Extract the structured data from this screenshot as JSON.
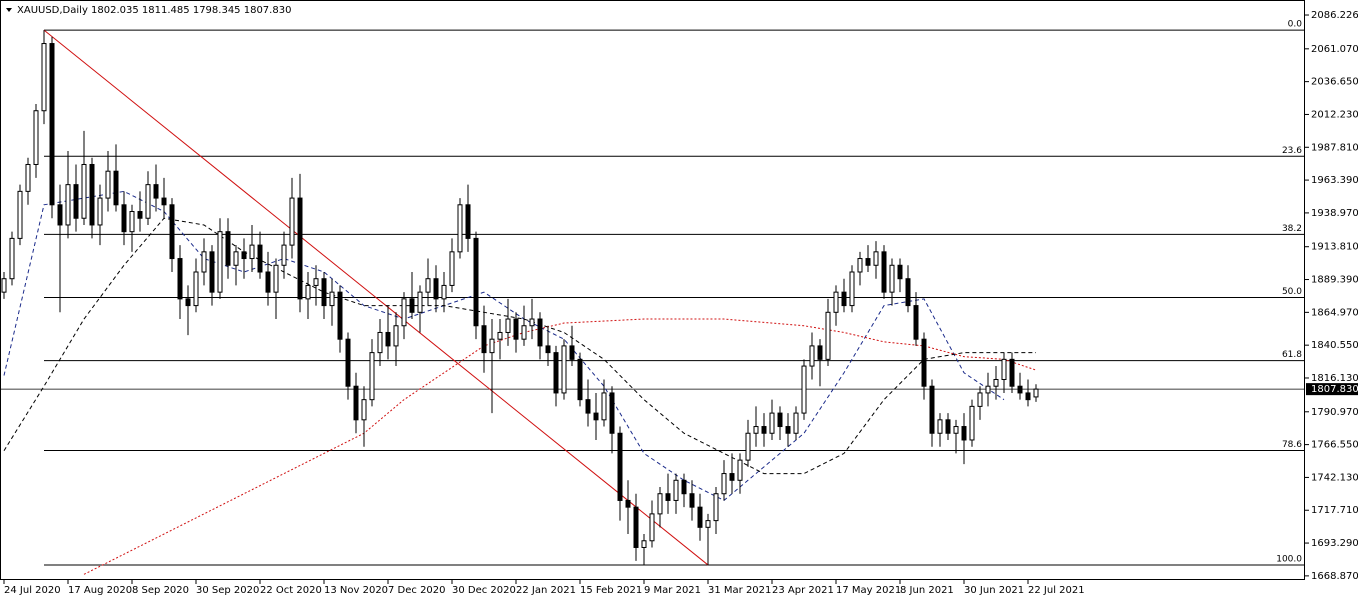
{
  "chart_data": {
    "type": "candlestick",
    "title": "XAUUSD,Daily  1802.035 1811.485 1798.345 1807.830",
    "xlim": [
      -0.5,
      162.625
    ],
    "ylim": [
      1665.8,
      2097.4
    ],
    "yticks": [
      2086.226,
      {
        "value": 2061.07,
        "label": "2061.070"
      },
      {
        "value": 2036.65,
        "label": "2036.650"
      },
      {
        "value": 2012.23,
        "label": "2012.230"
      },
      {
        "value": 1987.81,
        "label": "1987.810"
      },
      {
        "value": 1963.39,
        "label": "1963.390"
      },
      {
        "value": 1938.97,
        "label": "1938.970"
      },
      {
        "value": 1913.81,
        "label": "1913.810"
      },
      {
        "value": 1889.39,
        "label": "1889.390"
      },
      {
        "value": 1864.97,
        "label": "1864.970"
      },
      {
        "value": 1840.55,
        "label": "1840.550"
      },
      {
        "value": 1816.13,
        "label": "1816.130"
      },
      {
        "value": 1790.97,
        "label": "1790.970"
      },
      {
        "value": 1766.55,
        "label": "1766.550"
      },
      {
        "value": 1742.13,
        "label": "1742.130"
      },
      {
        "value": 1717.71,
        "label": "1717.710"
      },
      {
        "value": 1693.29,
        "label": "1693.290"
      },
      {
        "value": 1668.87,
        "label": "1668.870"
      }
    ],
    "xticks": [
      {
        "value": 0,
        "label": "24 Jul 2020"
      },
      {
        "value": 8,
        "label": "17 Aug 2020"
      },
      {
        "value": 16,
        "label": "8 Sep 2020"
      },
      {
        "value": 24,
        "label": "30 Sep 2020"
      },
      {
        "value": 32,
        "label": "22 Oct 2020"
      },
      {
        "value": 40,
        "label": "13 Nov 2020"
      },
      {
        "value": 48,
        "label": "7 Dec 2020"
      },
      {
        "value": 56,
        "label": "30 Dec 2020"
      },
      {
        "value": 64,
        "label": "22 Jan 2021"
      },
      {
        "value": 72,
        "label": "15 Feb 2021"
      },
      {
        "value": 80,
        "label": "9 Mar 2021"
      },
      {
        "value": 88,
        "label": "31 Mar 2021"
      },
      {
        "value": 96,
        "label": "23 Apr 2021"
      },
      {
        "value": 104,
        "label": "17 May 2021"
      },
      {
        "value": 112,
        "label": "8 Jun 2021"
      },
      {
        "value": 120,
        "label": "30 Jun 2021"
      },
      {
        "value": 128,
        "label": "22 Jul 2021"
      }
    ],
    "candles": [
      [
        1880,
        1895,
        1875,
        1890
      ],
      [
        1890,
        1925,
        1885,
        1920
      ],
      [
        1920,
        1960,
        1915,
        1955
      ],
      [
        1955,
        1980,
        1945,
        1975
      ],
      [
        1975,
        2020,
        1965,
        2015
      ],
      [
        2015,
        2075,
        2005,
        2065
      ],
      [
        2065,
        2070,
        1935,
        1945
      ],
      [
        1945,
        1960,
        1865,
        1930
      ],
      [
        1930,
        1985,
        1920,
        1960
      ],
      [
        1960,
        1975,
        1925,
        1935
      ],
      [
        1935,
        2000,
        1930,
        1975
      ],
      [
        1975,
        1980,
        1920,
        1930
      ],
      [
        1930,
        1960,
        1915,
        1950
      ],
      [
        1950,
        1985,
        1940,
        1970
      ],
      [
        1970,
        1990,
        1940,
        1945
      ],
      [
        1945,
        1955,
        1915,
        1925
      ],
      [
        1925,
        1945,
        1910,
        1940
      ],
      [
        1940,
        1955,
        1925,
        1935
      ],
      [
        1935,
        1970,
        1930,
        1960
      ],
      [
        1960,
        1975,
        1940,
        1950
      ],
      [
        1950,
        1965,
        1935,
        1945
      ],
      [
        1945,
        1950,
        1895,
        1905
      ],
      [
        1905,
        1915,
        1860,
        1875
      ],
      [
        1875,
        1885,
        1848,
        1870
      ],
      [
        1870,
        1905,
        1865,
        1895
      ],
      [
        1895,
        1920,
        1885,
        1910
      ],
      [
        1910,
        1915,
        1870,
        1880
      ],
      [
        1880,
        1935,
        1875,
        1925
      ],
      [
        1925,
        1935,
        1890,
        1900
      ],
      [
        1900,
        1915,
        1885,
        1910
      ],
      [
        1910,
        1920,
        1890,
        1905
      ],
      [
        1905,
        1930,
        1895,
        1915
      ],
      [
        1915,
        1925,
        1890,
        1895
      ],
      [
        1895,
        1910,
        1870,
        1880
      ],
      [
        1880,
        1905,
        1860,
        1900
      ],
      [
        1900,
        1925,
        1890,
        1915
      ],
      [
        1915,
        1965,
        1905,
        1950
      ],
      [
        1950,
        1968,
        1865,
        1875
      ],
      [
        1875,
        1895,
        1860,
        1885
      ],
      [
        1885,
        1900,
        1870,
        1890
      ],
      [
        1890,
        1895,
        1860,
        1870
      ],
      [
        1870,
        1890,
        1855,
        1880
      ],
      [
        1880,
        1885,
        1835,
        1845
      ],
      [
        1845,
        1850,
        1800,
        1810
      ],
      [
        1810,
        1820,
        1775,
        1785
      ],
      [
        1785,
        1810,
        1765,
        1800
      ],
      [
        1800,
        1845,
        1795,
        1835
      ],
      [
        1835,
        1860,
        1825,
        1850
      ],
      [
        1850,
        1870,
        1830,
        1840
      ],
      [
        1840,
        1865,
        1825,
        1855
      ],
      [
        1855,
        1880,
        1845,
        1875
      ],
      [
        1875,
        1895,
        1860,
        1865
      ],
      [
        1865,
        1885,
        1850,
        1880
      ],
      [
        1880,
        1905,
        1870,
        1890
      ],
      [
        1890,
        1900,
        1865,
        1875
      ],
      [
        1875,
        1895,
        1865,
        1885
      ],
      [
        1885,
        1920,
        1880,
        1910
      ],
      [
        1910,
        1950,
        1905,
        1945
      ],
      [
        1945,
        1960,
        1910,
        1920
      ],
      [
        1920,
        1925,
        1845,
        1855
      ],
      [
        1855,
        1870,
        1820,
        1835
      ],
      [
        1835,
        1860,
        1790,
        1845
      ],
      [
        1845,
        1860,
        1830,
        1850
      ],
      [
        1850,
        1875,
        1840,
        1860
      ],
      [
        1860,
        1865,
        1835,
        1845
      ],
      [
        1845,
        1870,
        1840,
        1855
      ],
      [
        1855,
        1875,
        1845,
        1860
      ],
      [
        1860,
        1865,
        1830,
        1840
      ],
      [
        1840,
        1855,
        1825,
        1835
      ],
      [
        1835,
        1840,
        1795,
        1805
      ],
      [
        1805,
        1845,
        1800,
        1840
      ],
      [
        1840,
        1855,
        1825,
        1830
      ],
      [
        1830,
        1835,
        1795,
        1800
      ],
      [
        1800,
        1815,
        1780,
        1790
      ],
      [
        1790,
        1805,
        1770,
        1785
      ],
      [
        1785,
        1815,
        1780,
        1805
      ],
      [
        1805,
        1810,
        1760,
        1775
      ],
      [
        1775,
        1780,
        1710,
        1725
      ],
      [
        1725,
        1740,
        1700,
        1720
      ],
      [
        1720,
        1730,
        1680,
        1690
      ],
      [
        1690,
        1700,
        1677,
        1695
      ],
      [
        1695,
        1725,
        1690,
        1715
      ],
      [
        1715,
        1735,
        1705,
        1730
      ],
      [
        1730,
        1745,
        1715,
        1725
      ],
      [
        1725,
        1745,
        1715,
        1740
      ],
      [
        1740,
        1745,
        1720,
        1730
      ],
      [
        1730,
        1740,
        1710,
        1720
      ],
      [
        1720,
        1730,
        1695,
        1705
      ],
      [
        1705,
        1715,
        1677,
        1710
      ],
      [
        1710,
        1735,
        1700,
        1730
      ],
      [
        1730,
        1755,
        1725,
        1745
      ],
      [
        1745,
        1760,
        1730,
        1740
      ],
      [
        1740,
        1760,
        1730,
        1755
      ],
      [
        1755,
        1785,
        1750,
        1775
      ],
      [
        1775,
        1795,
        1765,
        1780
      ],
      [
        1780,
        1790,
        1765,
        1775
      ],
      [
        1775,
        1800,
        1770,
        1790
      ],
      [
        1790,
        1795,
        1770,
        1780
      ],
      [
        1780,
        1790,
        1765,
        1775
      ],
      [
        1775,
        1795,
        1770,
        1790
      ],
      [
        1790,
        1830,
        1785,
        1825
      ],
      [
        1825,
        1850,
        1815,
        1840
      ],
      [
        1840,
        1845,
        1810,
        1830
      ],
      [
        1830,
        1875,
        1825,
        1865
      ],
      [
        1865,
        1885,
        1855,
        1880
      ],
      [
        1880,
        1890,
        1865,
        1870
      ],
      [
        1870,
        1900,
        1865,
        1895
      ],
      [
        1895,
        1910,
        1885,
        1905
      ],
      [
        1905,
        1915,
        1895,
        1900
      ],
      [
        1900,
        1918,
        1890,
        1910
      ],
      [
        1910,
        1915,
        1875,
        1880
      ],
      [
        1880,
        1905,
        1870,
        1900
      ],
      [
        1900,
        1905,
        1880,
        1890
      ],
      [
        1890,
        1900,
        1865,
        1870
      ],
      [
        1870,
        1880,
        1840,
        1845
      ],
      [
        1845,
        1850,
        1800,
        1810
      ],
      [
        1810,
        1815,
        1765,
        1775
      ],
      [
        1775,
        1790,
        1765,
        1785
      ],
      [
        1785,
        1790,
        1770,
        1775
      ],
      [
        1775,
        1785,
        1760,
        1780
      ],
      [
        1780,
        1790,
        1752,
        1770
      ],
      [
        1770,
        1800,
        1765,
        1795
      ],
      [
        1795,
        1810,
        1785,
        1805
      ],
      [
        1805,
        1820,
        1795,
        1810
      ],
      [
        1810,
        1825,
        1800,
        1815
      ],
      [
        1815,
        1835,
        1805,
        1830
      ],
      [
        1830,
        1835,
        1805,
        1810
      ],
      [
        1810,
        1820,
        1800,
        1805
      ],
      [
        1805,
        1815,
        1795,
        1800
      ],
      [
        1802.035,
        1811.485,
        1798.345,
        1807.83
      ]
    ],
    "series": [
      {
        "color": "#1a2a8a",
        "dash": "4,3",
        "x": [
          0,
          5,
          10,
          15,
          20,
          25,
          30,
          35,
          40,
          45,
          50,
          55,
          60,
          65,
          70,
          75,
          80,
          85,
          90,
          95,
          100,
          105,
          110,
          115,
          120,
          125
        ],
        "values": [
          1818,
          1945,
          1950,
          1955,
          1940,
          1905,
          1895,
          1905,
          1895,
          1870,
          1860,
          1870,
          1880,
          1860,
          1845,
          1810,
          1760,
          1740,
          1725,
          1750,
          1775,
          1820,
          1870,
          1875,
          1820,
          1800
        ]
      },
      {
        "color": "#000000",
        "dash": "4,3",
        "x": [
          0,
          5,
          10,
          15,
          20,
          25,
          30,
          35,
          40,
          45,
          50,
          55,
          60,
          65,
          70,
          75,
          80,
          85,
          90,
          95,
          100,
          105,
          110,
          115,
          120,
          125,
          129
        ],
        "values": [
          1762,
          1810,
          1860,
          1900,
          1935,
          1930,
          1910,
          1895,
          1880,
          1870,
          1870,
          1870,
          1865,
          1860,
          1850,
          1830,
          1800,
          1775,
          1760,
          1745,
          1745,
          1760,
          1800,
          1830,
          1835,
          1835,
          1835
        ]
      },
      {
        "color": "#d01010",
        "dash": "2,2",
        "x": [
          10,
          20,
          30,
          40,
          45,
          50,
          55,
          60,
          65,
          70,
          80,
          90,
          100,
          105,
          110,
          115,
          120,
          125,
          129
        ],
        "values": [
          1670,
          1700,
          1730,
          1760,
          1775,
          1800,
          1820,
          1840,
          1850,
          1857,
          1860,
          1860,
          1855,
          1850,
          1843,
          1840,
          1832,
          1830,
          1822
        ]
      }
    ],
    "trendline": {
      "color": "#d01010",
      "x": [
        5,
        88
      ],
      "values": [
        2075,
        1677
      ]
    },
    "fib_levels": [
      {
        "label": "0.0",
        "value": 2075
      },
      {
        "label": "23.6",
        "value": 1981.1
      },
      {
        "label": "38.2",
        "value": 1923
      },
      {
        "label": "50.0",
        "value": 1876
      },
      {
        "label": "61.8",
        "value": 1829
      },
      {
        "label": "78.6",
        "value": 1762.2
      },
      {
        "label": "100.0",
        "value": 1677
      }
    ],
    "fib_start": 5,
    "current_price": {
      "value": 1807.83,
      "label": "1807.830"
    }
  }
}
